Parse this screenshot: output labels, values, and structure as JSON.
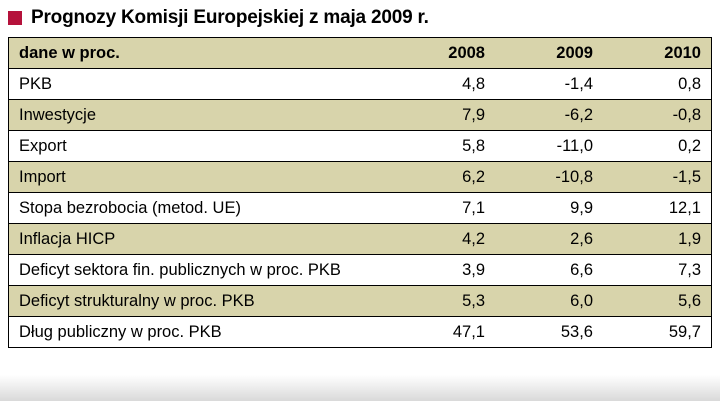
{
  "title": "Prognozy Komisji Europejskiej z maja 2009 r.",
  "colors": {
    "accent_square": "#b5123b",
    "row_alternate": "#d8d4ab",
    "border": "#000000"
  },
  "table": {
    "header": {
      "label": "dane w proc.",
      "years": [
        "2008",
        "2009",
        "2010"
      ]
    },
    "rows": [
      {
        "label": "PKB",
        "values": [
          "4,8",
          "-1,4",
          "0,8"
        ]
      },
      {
        "label": "Inwestycje",
        "values": [
          "7,9",
          "-6,2",
          "-0,8"
        ]
      },
      {
        "label": "Export",
        "values": [
          "5,8",
          "-11,0",
          "0,2"
        ]
      },
      {
        "label": "Import",
        "values": [
          "6,2",
          "-10,8",
          "-1,5"
        ]
      },
      {
        "label": "Stopa bezrobocia (metod. UE)",
        "values": [
          "7,1",
          "9,9",
          "12,1"
        ]
      },
      {
        "label": "Inflacja HICP",
        "values": [
          "4,2",
          "2,6",
          "1,9"
        ]
      },
      {
        "label": "Deficyt sektora fin. publicznych w proc. PKB",
        "values": [
          "3,9",
          "6,6",
          "7,3"
        ]
      },
      {
        "label": "Deficyt strukturalny w proc. PKB",
        "values": [
          "5,3",
          "6,0",
          "5,6"
        ]
      },
      {
        "label": "Dług publiczny w proc. PKB",
        "values": [
          "47,1",
          "53,6",
          "59,7"
        ]
      }
    ]
  },
  "chart_data": {
    "type": "table",
    "title": "Prognozy Komisji Europejskiej z maja 2009 r.",
    "columns": [
      "dane w proc.",
      "2008",
      "2009",
      "2010"
    ],
    "rows": [
      [
        "PKB",
        4.8,
        -1.4,
        0.8
      ],
      [
        "Inwestycje",
        7.9,
        -6.2,
        -0.8
      ],
      [
        "Export",
        5.8,
        -11.0,
        0.2
      ],
      [
        "Import",
        6.2,
        -10.8,
        -1.5
      ],
      [
        "Stopa bezrobocia (metod. UE)",
        7.1,
        9.9,
        12.1
      ],
      [
        "Inflacja HICP",
        4.2,
        2.6,
        1.9
      ],
      [
        "Deficyt sektora fin. publicznych w proc. PKB",
        3.9,
        6.6,
        7.3
      ],
      [
        "Deficyt strukturalny w proc. PKB",
        5.3,
        6.0,
        5.6
      ],
      [
        "Dług publiczny w proc. PKB",
        47.1,
        53.6,
        59.7
      ]
    ],
    "units": "percent"
  }
}
